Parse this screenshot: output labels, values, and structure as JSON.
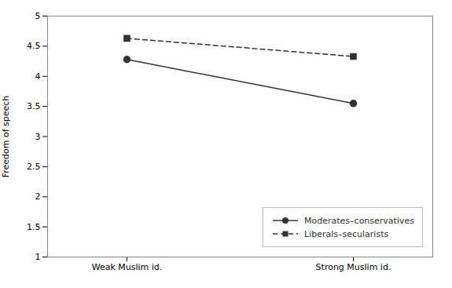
{
  "chart_data": {
    "type": "line",
    "categories": [
      "Weak Muslim id.",
      "Strong Muslim id."
    ],
    "series": [
      {
        "name": "Moderates–conservatives",
        "color": "#333333",
        "values": [
          4.28,
          3.55
        ],
        "marker": "circle",
        "line_style": "solid"
      },
      {
        "name": "Liberals–secularists",
        "color": "#333333",
        "values": [
          4.63,
          4.33
        ],
        "marker": "square",
        "line_style": "dashed"
      }
    ],
    "ylabel": "Freedom of speech",
    "ylim": [
      1,
      5
    ],
    "yticks": [
      1,
      1.5,
      2,
      2.5,
      3,
      3.5,
      4,
      4.5,
      5
    ],
    "legend": "lower right"
  }
}
